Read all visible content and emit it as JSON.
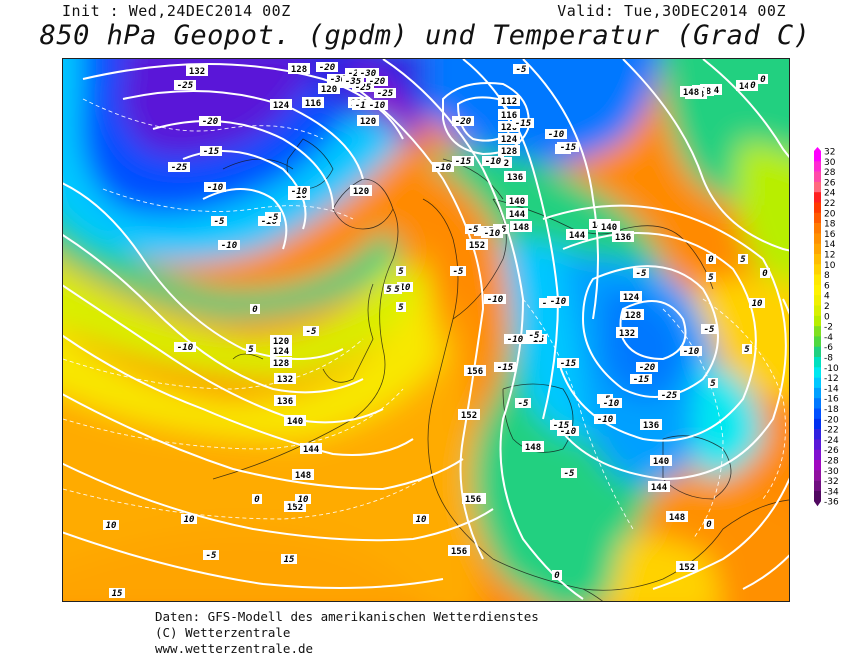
{
  "header": {
    "init": "Init : Wed,24DEC2014 00Z",
    "valid": "Valid: Tue,30DEC2014 00Z",
    "title": "850 hPa Geopot. (gpdm) und Temperatur (Grad C)"
  },
  "footer": {
    "line1": "Daten: GFS-Modell des amerikanischen Wetterdienstes",
    "line2": "(C) Wetterzentrale",
    "line3": "www.wetterzentrale.de"
  },
  "legend": {
    "levels": [
      "32",
      "30",
      "28",
      "26",
      "24",
      "22",
      "20",
      "18",
      "16",
      "14",
      "12",
      "10",
      "8",
      "6",
      "4",
      "2",
      "0",
      "-2",
      "-4",
      "-6",
      "-8",
      "-10",
      "-12",
      "-14",
      "-16",
      "-18",
      "-20",
      "-22",
      "-24",
      "-26",
      "-28",
      "-30",
      "-32",
      "-34",
      "-36"
    ],
    "colors": [
      "#ff00ff",
      "#ff2ad2",
      "#ff4aa8",
      "#ff6a7e",
      "#ff2020",
      "#ff3a00",
      "#ff5a00",
      "#ff7a00",
      "#ff9000",
      "#ffa500",
      "#ffbd00",
      "#ffd200",
      "#ffe800",
      "#fff200",
      "#f0f000",
      "#d8f000",
      "#b8ee00",
      "#80e020",
      "#50d840",
      "#20d080",
      "#00e0c0",
      "#00e8f0",
      "#00c8ff",
      "#00a0ff",
      "#0078ff",
      "#0050ff",
      "#0030f0",
      "#3020e0",
      "#5a18d8",
      "#8010d0",
      "#a008c0",
      "#9010a0",
      "#701080",
      "#500860"
    ]
  },
  "map": {
    "geopotential_labels": [
      {
        "v": "132"
      },
      {
        "v": "128"
      },
      {
        "v": "124"
      },
      {
        "v": "120"
      },
      {
        "v": "116"
      },
      {
        "v": "116"
      },
      {
        "v": "120"
      },
      {
        "v": "120"
      },
      {
        "v": "112"
      },
      {
        "v": "116"
      },
      {
        "v": "120"
      },
      {
        "v": "124"
      },
      {
        "v": "128"
      },
      {
        "v": "132"
      },
      {
        "v": "136"
      },
      {
        "v": "140"
      },
      {
        "v": "144"
      },
      {
        "v": "148"
      },
      {
        "v": "152"
      },
      {
        "v": "144"
      },
      {
        "v": "140"
      },
      {
        "v": "144"
      },
      {
        "v": "148"
      },
      {
        "v": "144"
      },
      {
        "v": "148"
      },
      {
        "v": "140"
      },
      {
        "v": "136"
      },
      {
        "v": "124"
      },
      {
        "v": "128"
      },
      {
        "v": "132"
      },
      {
        "v": "120"
      },
      {
        "v": "124"
      },
      {
        "v": "128"
      },
      {
        "v": "132"
      },
      {
        "v": "136"
      },
      {
        "v": "140"
      },
      {
        "v": "144"
      },
      {
        "v": "148"
      },
      {
        "v": "152"
      },
      {
        "v": "156"
      },
      {
        "v": "156"
      },
      {
        "v": "152"
      },
      {
        "v": "148"
      },
      {
        "v": "156"
      },
      {
        "v": "156"
      },
      {
        "v": "136"
      },
      {
        "v": "140"
      },
      {
        "v": "144"
      },
      {
        "v": "148"
      },
      {
        "v": "152"
      },
      {
        "v": "148"
      }
    ],
    "temperature_labels": [
      {
        "v": "-25"
      },
      {
        "v": "-20"
      },
      {
        "v": "-25"
      },
      {
        "v": "-20"
      },
      {
        "v": "-25"
      },
      {
        "v": "-20"
      },
      {
        "v": "-15"
      },
      {
        "v": "-10"
      },
      {
        "v": "-20"
      },
      {
        "v": "-15"
      },
      {
        "v": "-10"
      },
      {
        "v": "-5"
      },
      {
        "v": "-10"
      },
      {
        "v": "-10"
      },
      {
        "v": "-10"
      },
      {
        "v": "-5"
      },
      {
        "v": "-10"
      },
      {
        "v": "-5"
      },
      {
        "v": "-10"
      },
      {
        "v": "-25"
      },
      {
        "v": "-30"
      },
      {
        "v": "-25"
      },
      {
        "v": "-35"
      },
      {
        "v": "-30"
      },
      {
        "v": "-15"
      },
      {
        "v": "-10"
      },
      {
        "v": "-5"
      },
      {
        "v": "-15"
      },
      {
        "v": "-10"
      },
      {
        "v": "-5"
      },
      {
        "v": "-20"
      },
      {
        "v": "-15"
      },
      {
        "v": "-5"
      },
      {
        "v": "-10"
      },
      {
        "v": "-15"
      },
      {
        "v": "-5"
      },
      {
        "v": "-5"
      },
      {
        "v": "-10"
      },
      {
        "v": "-15"
      },
      {
        "v": "-15"
      },
      {
        "v": "-10"
      },
      {
        "v": "-5"
      },
      {
        "v": "-10"
      },
      {
        "v": "-15"
      },
      {
        "v": "-10"
      },
      {
        "v": "-15"
      },
      {
        "v": "-5"
      },
      {
        "v": "-10"
      },
      {
        "v": "-15"
      },
      {
        "v": "-5"
      },
      {
        "v": "-10"
      },
      {
        "v": "-5"
      },
      {
        "v": "0"
      },
      {
        "v": "-5"
      },
      {
        "v": "0"
      },
      {
        "v": "5"
      },
      {
        "v": "0"
      },
      {
        "v": "5"
      },
      {
        "v": "5"
      },
      {
        "v": "10"
      },
      {
        "v": "10"
      },
      {
        "v": "15"
      },
      {
        "v": "10"
      },
      {
        "v": "10"
      },
      {
        "v": "15"
      },
      {
        "v": "5"
      },
      {
        "v": "0"
      },
      {
        "v": "-5"
      },
      {
        "v": "0"
      },
      {
        "v": "5"
      },
      {
        "v": "10"
      },
      {
        "v": "5"
      },
      {
        "v": "5"
      },
      {
        "v": "0"
      },
      {
        "v": "0"
      },
      {
        "v": "0"
      },
      {
        "v": "-10"
      },
      {
        "v": "5"
      },
      {
        "v": "5"
      },
      {
        "v": "10"
      },
      {
        "v": "0"
      },
      {
        "v": "-5"
      },
      {
        "v": "-10"
      },
      {
        "v": "-20"
      },
      {
        "v": "-15"
      },
      {
        "v": "-25"
      }
    ]
  }
}
